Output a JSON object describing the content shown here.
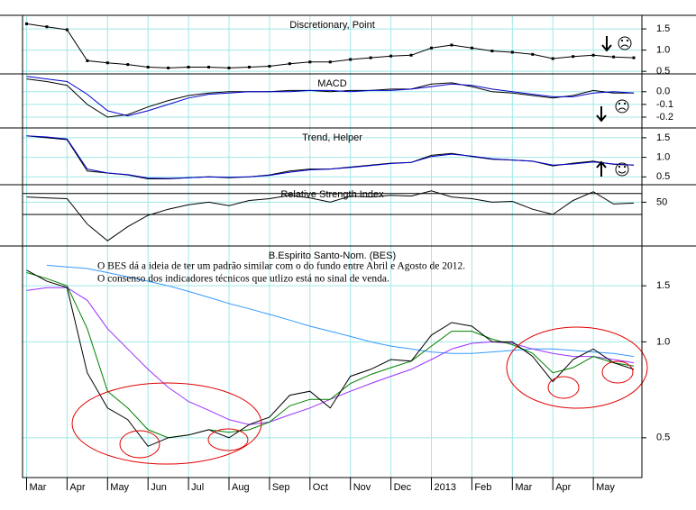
{
  "chart_data": [
    {
      "type": "line",
      "title": "Discretionary, Point",
      "x": [
        0,
        0.5,
        1,
        1.5,
        2,
        2.5,
        3,
        3.5,
        4,
        4.5,
        5,
        5.5,
        6,
        6.5,
        7,
        7.5,
        8,
        8.5,
        9,
        9.5,
        10,
        10.5,
        11,
        11.5,
        12,
        12.5,
        13,
        13.5,
        14,
        14.5,
        15
      ],
      "series": [
        {
          "color": "#000000",
          "marker": true,
          "values": [
            1.62,
            1.55,
            1.48,
            0.75,
            0.7,
            0.66,
            0.6,
            0.58,
            0.6,
            0.6,
            0.58,
            0.6,
            0.62,
            0.68,
            0.72,
            0.72,
            0.78,
            0.82,
            0.86,
            0.88,
            1.05,
            1.12,
            1.05,
            0.98,
            0.95,
            0.9,
            0.8,
            0.85,
            0.88,
            0.84,
            0.82
          ]
        }
      ],
      "xlim": [
        -0.1,
        15.2
      ],
      "ylim": [
        0.44,
        1.82
      ],
      "yticks": [
        1.5,
        {
          "value": 1,
          "label": "1.0"
        },
        0.5
      ],
      "grid": true
    },
    {
      "type": "line",
      "title": "MACD",
      "x": [
        0,
        0.5,
        1,
        1.5,
        2,
        2.5,
        3,
        3.5,
        4,
        4.5,
        5,
        5.5,
        6,
        6.5,
        7,
        7.5,
        8,
        8.5,
        9,
        9.5,
        10,
        10.5,
        11,
        11.5,
        12,
        12.5,
        13,
        13.5,
        14,
        14.5,
        15
      ],
      "series": [
        {
          "color": "#000000",
          "values": [
            0.1,
            0.08,
            0.05,
            -0.1,
            -0.2,
            -0.18,
            -0.12,
            -0.07,
            -0.03,
            -0.01,
            0,
            0,
            0,
            0.01,
            0.01,
            0,
            0.01,
            0.01,
            0.02,
            0.02,
            0.06,
            0.07,
            0.04,
            0,
            -0.01,
            -0.03,
            -0.05,
            -0.03,
            0.01,
            -0.01,
            -0.01
          ]
        },
        {
          "color": "#0000cc",
          "values": [
            0.12,
            0.1,
            0.08,
            -0.02,
            -0.15,
            -0.19,
            -0.15,
            -0.1,
            -0.05,
            -0.02,
            -0.01,
            0,
            0,
            0,
            0.01,
            0.01,
            0,
            0.01,
            0.01,
            0.02,
            0.04,
            0.06,
            0.05,
            0.02,
            0,
            -0.02,
            -0.04,
            -0.04,
            -0.01,
            0,
            -0.01
          ]
        }
      ],
      "xlim": [
        -0.1,
        15.2
      ],
      "ylim": [
        -0.285,
        0.14
      ],
      "yticks": [
        {
          "value": 0,
          "label": "0.0"
        },
        -0.1,
        -0.2
      ],
      "grid": true
    },
    {
      "type": "line",
      "title": "Trend, Helper",
      "x": [
        0,
        0.5,
        1,
        1.5,
        2,
        2.5,
        3,
        3.5,
        4,
        4.5,
        5,
        5.5,
        6,
        6.5,
        7,
        7.5,
        8,
        8.5,
        9,
        9.5,
        10,
        10.5,
        11,
        11.5,
        12,
        12.5,
        13,
        13.5,
        14,
        14.5,
        15
      ],
      "series": [
        {
          "color": "#000000",
          "values": [
            1.55,
            1.5,
            1.45,
            0.65,
            0.6,
            0.55,
            0.45,
            0.45,
            0.48,
            0.5,
            0.48,
            0.5,
            0.55,
            0.65,
            0.7,
            0.7,
            0.75,
            0.8,
            0.85,
            0.87,
            1.05,
            1.1,
            1.02,
            0.95,
            0.93,
            0.9,
            0.78,
            0.85,
            0.9,
            0.82,
            0.8
          ]
        },
        {
          "color": "#0000cc",
          "values": [
            1.55,
            1.52,
            1.47,
            0.7,
            0.6,
            0.56,
            0.47,
            0.46,
            0.48,
            0.5,
            0.49,
            0.5,
            0.54,
            0.62,
            0.68,
            0.7,
            0.74,
            0.79,
            0.84,
            0.87,
            1.02,
            1.08,
            1.03,
            0.96,
            0.93,
            0.9,
            0.8,
            0.83,
            0.88,
            0.83,
            0.8
          ]
        }
      ],
      "xlim": [
        -0.1,
        15.2
      ],
      "ylim": [
        0.3,
        1.75
      ],
      "yticks": [
        1.5,
        {
          "value": 1,
          "label": "1.0"
        },
        0.5
      ],
      "grid": true
    },
    {
      "type": "line",
      "title": "Relative Strength Index",
      "x": [
        0,
        0.5,
        1,
        1.5,
        2,
        2.5,
        3,
        3.5,
        4,
        4.5,
        5,
        5.5,
        6,
        6.5,
        7,
        7.5,
        8,
        8.5,
        9,
        9.5,
        10,
        10.5,
        11,
        11.5,
        12,
        12.5,
        13,
        13.5,
        14,
        14.5,
        15
      ],
      "series": [
        {
          "color": "#000000",
          "values": [
            56,
            55,
            54,
            25,
            6,
            22,
            35,
            42,
            47,
            50,
            46,
            52,
            54,
            58,
            55,
            50,
            57,
            56,
            58,
            57,
            63,
            56,
            54,
            50,
            51,
            42,
            36,
            52,
            62,
            48,
            49
          ]
        }
      ],
      "levels": [
        60,
        36
      ],
      "xlim": [
        -0.1,
        15.2
      ],
      "ylim": [
        0,
        70
      ],
      "yticks": [
        50
      ],
      "grid": true
    },
    {
      "type": "line",
      "title": "B.Espirito Santo-Nom. (BES)",
      "annotations": [
        "O BES dá a ideia de ter um padrão similar com o do fundo entre Abril e Agosto de 2012.",
        "O consenso dos indicadores técnicos que utlizo está no sinal de venda."
      ],
      "x": [
        0,
        0.5,
        1,
        1.5,
        2,
        2.5,
        3,
        3.5,
        4,
        4.5,
        5,
        5.5,
        6,
        6.5,
        7,
        7.5,
        8,
        8.5,
        9,
        9.5,
        10,
        10.5,
        11,
        11.5,
        12,
        12.5,
        13,
        13.5,
        14,
        14.5,
        15
      ],
      "series": [
        {
          "color": "#3399ff",
          "values": [
            null,
            1.74,
            1.72,
            1.7,
            1.65,
            1.6,
            1.55,
            1.5,
            1.44,
            1.38,
            1.32,
            1.27,
            1.22,
            1.17,
            1.12,
            1.08,
            1.04,
            1.0,
            0.97,
            0.95,
            0.93,
            0.92,
            0.92,
            0.93,
            0.94,
            0.95,
            0.95,
            0.94,
            0.93,
            0.92,
            0.9
          ]
        },
        {
          "color": "#9b30ff",
          "values": [
            1.45,
            1.48,
            1.48,
            1.35,
            1.1,
            0.95,
            0.82,
            0.72,
            0.65,
            0.61,
            0.57,
            0.55,
            0.56,
            0.59,
            0.62,
            0.66,
            0.7,
            0.74,
            0.78,
            0.82,
            0.88,
            0.95,
            0.99,
            1.0,
            0.99,
            0.95,
            0.92,
            0.9,
            0.9,
            0.88,
            0.86
          ]
        },
        {
          "color": "#008000",
          "values": [
            1.65,
            1.58,
            1.5,
            1.1,
            0.7,
            0.62,
            0.53,
            0.5,
            0.51,
            0.53,
            0.52,
            0.53,
            0.56,
            0.63,
            0.66,
            0.66,
            0.74,
            0.79,
            0.83,
            0.87,
            0.97,
            1.08,
            1.08,
            1.02,
            0.98,
            0.92,
            0.8,
            0.83,
            0.9,
            0.86,
            0.84
          ]
        },
        {
          "color": "#000000",
          "values": [
            1.68,
            1.55,
            1.48,
            0.8,
            0.62,
            0.57,
            0.47,
            0.5,
            0.51,
            0.53,
            0.5,
            0.55,
            0.58,
            0.68,
            0.7,
            0.62,
            0.78,
            0.82,
            0.88,
            0.87,
            1.05,
            1.15,
            1.12,
            1.0,
            1.0,
            0.9,
            0.75,
            0.88,
            0.95,
            0.86,
            0.82
          ]
        }
      ],
      "xlim": [
        -0.1,
        15.2
      ],
      "ylim": [
        0.375,
        2.0
      ],
      "yscale": "log",
      "yticks": [
        1.5,
        {
          "value": 1,
          "label": "1.0"
        },
        0.5
      ],
      "grid": true,
      "xticks": [
        {
          "value": 0,
          "label": "Mar"
        },
        {
          "value": 1,
          "label": "Apr"
        },
        {
          "value": 2,
          "label": "May"
        },
        {
          "value": 3,
          "label": "Jun"
        },
        {
          "value": 4,
          "label": "Jul"
        },
        {
          "value": 5,
          "label": "Aug"
        },
        {
          "value": 6,
          "label": "Sep"
        },
        {
          "value": 7,
          "label": "Oct"
        },
        {
          "value": 8,
          "label": "Nov"
        },
        {
          "value": 9,
          "label": "Dec"
        },
        {
          "value": 10,
          "label": "2013"
        },
        {
          "value": 11,
          "label": "Feb"
        },
        {
          "value": 12,
          "label": "Mar"
        },
        {
          "value": 13,
          "label": "Apr"
        },
        {
          "value": 14,
          "label": "May"
        }
      ]
    }
  ]
}
